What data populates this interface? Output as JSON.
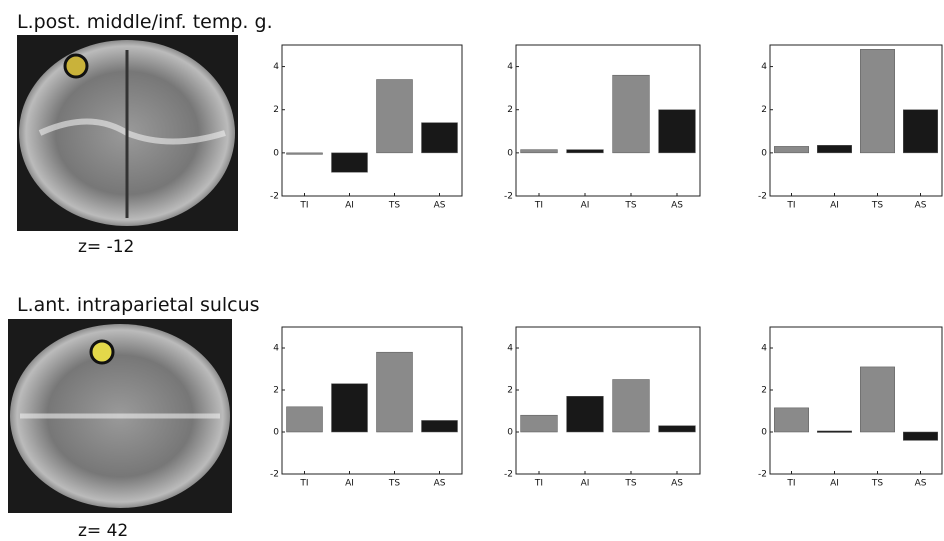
{
  "rows": [
    {
      "title": "L.post. middle/inf. temp. g.",
      "z_label": "z= -12"
    },
    {
      "title": "L.ant. intraparietal sulcus",
      "z_label": "z= 42"
    }
  ],
  "chart_data": [
    {
      "type": "bar",
      "categories": [
        "TI",
        "AI",
        "TS",
        "AS"
      ],
      "values": [
        -0.05,
        -0.9,
        3.4,
        1.4
      ],
      "colors": [
        "#8a8a8a",
        "#181818",
        "#8a8a8a",
        "#181818"
      ],
      "ylim": [
        -2,
        5
      ],
      "yticks": [
        -2,
        0,
        2,
        4
      ]
    },
    {
      "type": "bar",
      "categories": [
        "TI",
        "AI",
        "TS",
        "AS"
      ],
      "values": [
        0.15,
        0.15,
        3.6,
        2.0
      ],
      "colors": [
        "#8a8a8a",
        "#181818",
        "#8a8a8a",
        "#181818"
      ],
      "ylim": [
        -2,
        5
      ],
      "yticks": [
        -2,
        0,
        2,
        4
      ]
    },
    {
      "type": "bar",
      "categories": [
        "TI",
        "AI",
        "TS",
        "AS"
      ],
      "values": [
        0.3,
        0.35,
        4.8,
        2.0
      ],
      "colors": [
        "#8a8a8a",
        "#181818",
        "#8a8a8a",
        "#181818"
      ],
      "ylim": [
        -2,
        5
      ],
      "yticks": [
        -2,
        0,
        2,
        4
      ]
    },
    {
      "type": "bar",
      "categories": [
        "TI",
        "AI",
        "TS",
        "AS"
      ],
      "values": [
        1.2,
        2.3,
        3.8,
        0.55
      ],
      "colors": [
        "#8a8a8a",
        "#181818",
        "#8a8a8a",
        "#181818"
      ],
      "ylim": [
        -2,
        5
      ],
      "yticks": [
        -2,
        0,
        2,
        4
      ]
    },
    {
      "type": "bar",
      "categories": [
        "TI",
        "AI",
        "TS",
        "AS"
      ],
      "values": [
        0.8,
        1.7,
        2.5,
        0.3
      ],
      "colors": [
        "#8a8a8a",
        "#181818",
        "#8a8a8a",
        "#181818"
      ],
      "ylim": [
        -2,
        5
      ],
      "yticks": [
        -2,
        0,
        2,
        4
      ]
    },
    {
      "type": "bar",
      "categories": [
        "TI",
        "AI",
        "TS",
        "AS"
      ],
      "values": [
        1.15,
        0.05,
        3.1,
        -0.4
      ],
      "colors": [
        "#8a8a8a",
        "#181818",
        "#8a8a8a",
        "#181818"
      ],
      "ylim": [
        -2,
        5
      ],
      "yticks": [
        -2,
        0,
        2,
        4
      ]
    }
  ]
}
